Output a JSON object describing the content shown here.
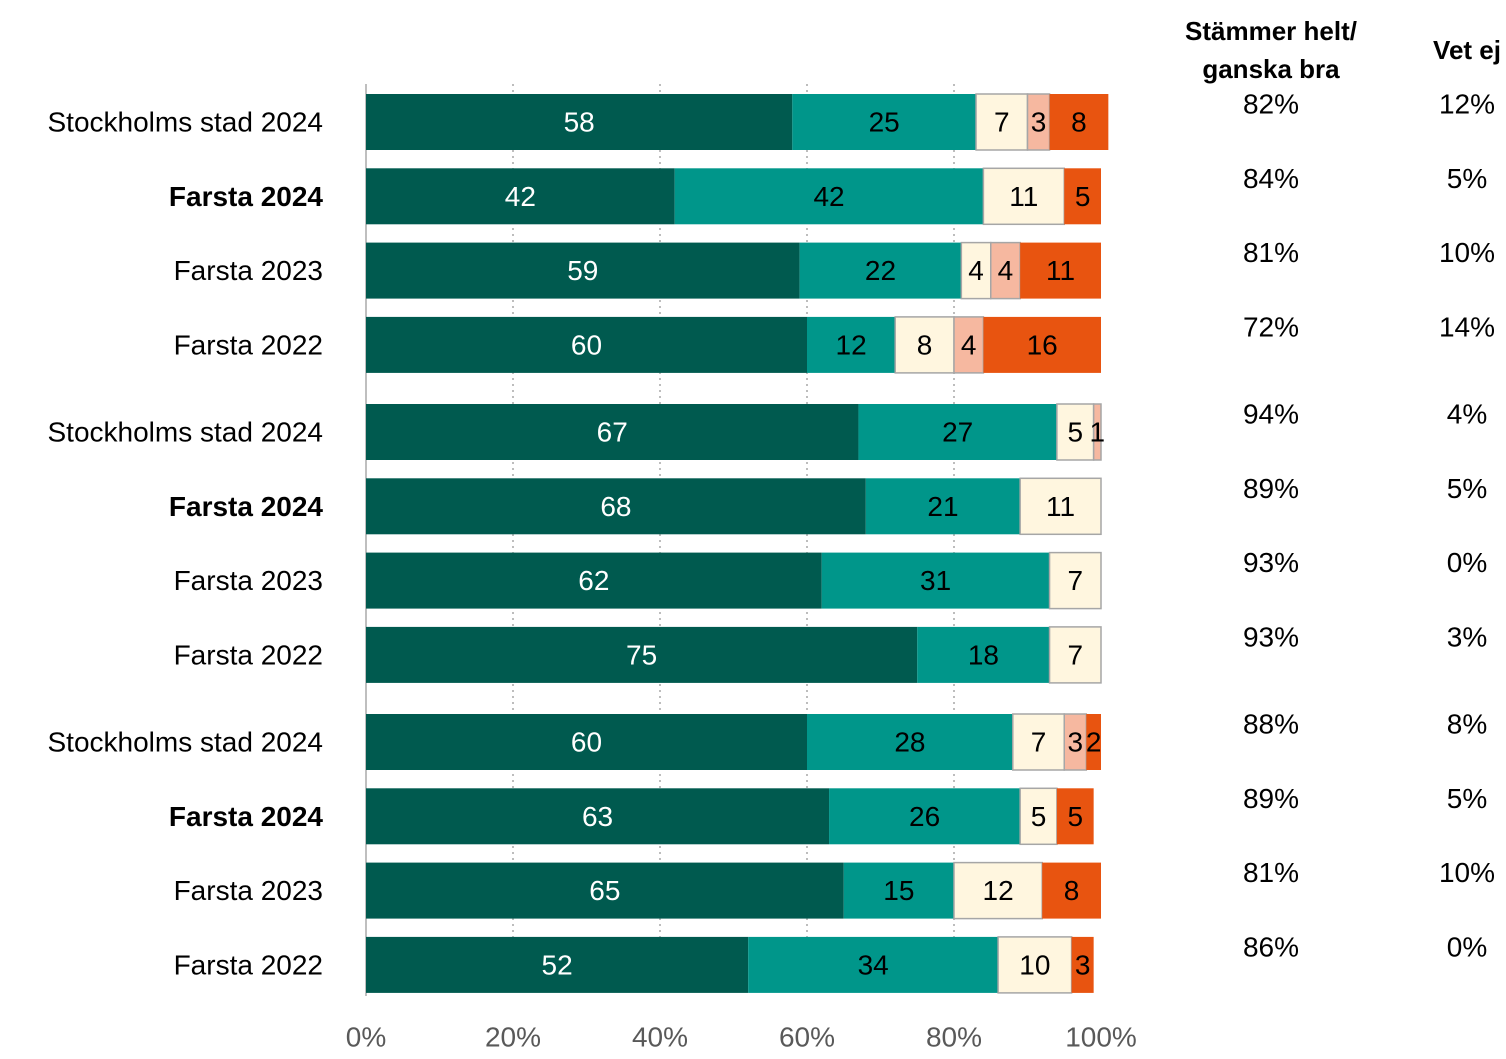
{
  "chart_data": {
    "type": "bar",
    "orientation": "horizontal",
    "stacked": true,
    "xlim": [
      0,
      100
    ],
    "x_ticks": [
      "0%",
      "20%",
      "40%",
      "60%",
      "80%",
      "100%"
    ],
    "grid": true,
    "legend": "none",
    "column_headers": {
      "agree": "Stämmer helt/ ganska bra",
      "dont_know": "Vet ej"
    },
    "segment_colors": [
      "#005a4f",
      "#00968a",
      "#fff6df",
      "#f6b8a0",
      "#e85410"
    ],
    "groups": [
      {
        "rows": [
          {
            "label": "Stockholms stad 2024",
            "bold": false,
            "values": [
              58,
              25,
              7,
              3,
              8
            ],
            "agree": "82%",
            "dont_know": "12%"
          },
          {
            "label": "Farsta 2024",
            "bold": true,
            "values": [
              42,
              42,
              11,
              0,
              5
            ],
            "agree": "84%",
            "dont_know": "5%"
          },
          {
            "label": "Farsta 2023",
            "bold": false,
            "values": [
              59,
              22,
              4,
              4,
              11
            ],
            "agree": "81%",
            "dont_know": "10%"
          },
          {
            "label": "Farsta 2022",
            "bold": false,
            "values": [
              60,
              12,
              8,
              4,
              16
            ],
            "agree": "72%",
            "dont_know": "14%"
          }
        ]
      },
      {
        "rows": [
          {
            "label": "Stockholms stad 2024",
            "bold": false,
            "values": [
              67,
              27,
              5,
              1,
              0
            ],
            "agree": "94%",
            "dont_know": "4%"
          },
          {
            "label": "Farsta 2024",
            "bold": true,
            "values": [
              68,
              21,
              11,
              0,
              0
            ],
            "agree": "89%",
            "dont_know": "5%"
          },
          {
            "label": "Farsta 2023",
            "bold": false,
            "values": [
              62,
              31,
              7,
              0,
              0
            ],
            "agree": "93%",
            "dont_know": "0%"
          },
          {
            "label": "Farsta 2022",
            "bold": false,
            "values": [
              75,
              18,
              7,
              0,
              0
            ],
            "agree": "93%",
            "dont_know": "3%"
          }
        ]
      },
      {
        "rows": [
          {
            "label": "Stockholms stad 2024",
            "bold": false,
            "values": [
              60,
              28,
              7,
              3,
              2
            ],
            "agree": "88%",
            "dont_know": "8%"
          },
          {
            "label": "Farsta 2024",
            "bold": true,
            "values": [
              63,
              26,
              5,
              0,
              5
            ],
            "agree": "89%",
            "dont_know": "5%"
          },
          {
            "label": "Farsta 2023",
            "bold": false,
            "values": [
              65,
              15,
              12,
              0,
              8
            ],
            "agree": "81%",
            "dont_know": "10%"
          },
          {
            "label": "Farsta 2022",
            "bold": false,
            "values": [
              52,
              34,
              10,
              0,
              3
            ],
            "agree": "86%",
            "dont_know": "0%"
          }
        ]
      }
    ]
  }
}
